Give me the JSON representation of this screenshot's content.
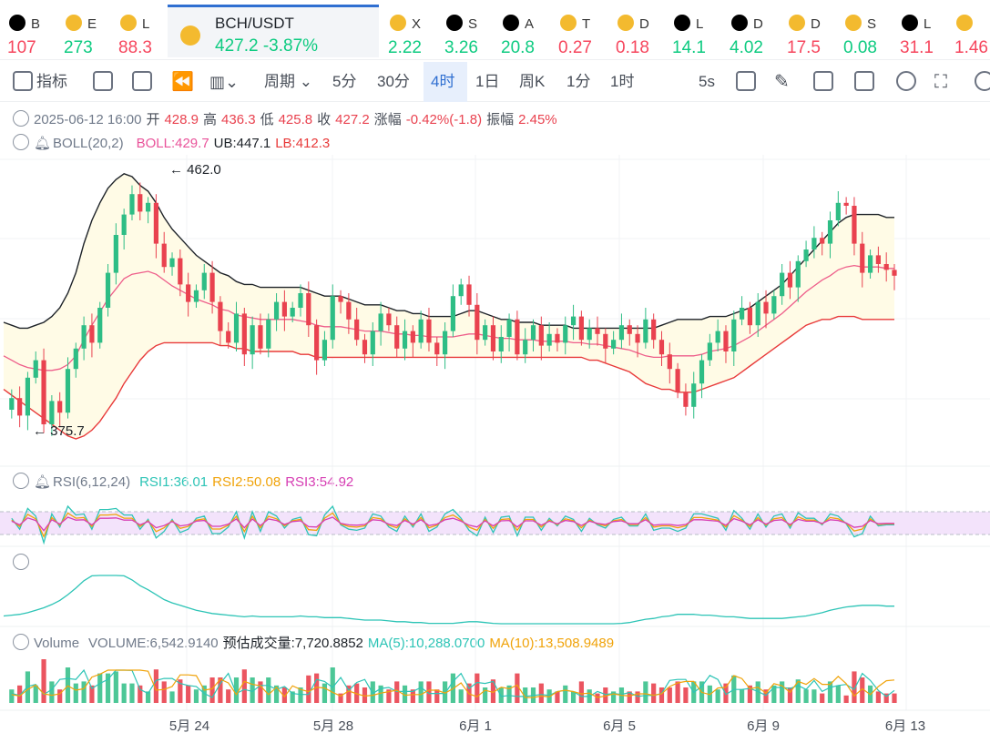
{
  "tickers": [
    {
      "icon": "okx-icon",
      "sym": "B",
      "val": "107",
      "dir": "down"
    },
    {
      "icon": "bnb-icon",
      "sym": "E",
      "val": "273",
      "dir": "up"
    },
    {
      "icon": "bnb-icon",
      "sym": "L",
      "val": "88.3",
      "dir": "down"
    },
    {
      "icon": "bnb-icon",
      "sym": "BCH/USDT",
      "val": "427.2  -3.87%",
      "dir": "up",
      "active": true
    },
    {
      "icon": "bnb-icon",
      "sym": "X",
      "val": "2.22",
      "dir": "up"
    },
    {
      "icon": "okx-icon",
      "sym": "S",
      "val": "3.26",
      "dir": "up"
    },
    {
      "icon": "okx-icon",
      "sym": "A",
      "val": "20.8",
      "dir": "up"
    },
    {
      "icon": "bnb-icon",
      "sym": "T",
      "val": "0.27",
      "dir": "down"
    },
    {
      "icon": "bnb-icon",
      "sym": "D",
      "val": "0.18",
      "dir": "down"
    },
    {
      "icon": "okx-icon",
      "sym": "L",
      "val": "14.1",
      "dir": "up"
    },
    {
      "icon": "okx-icon",
      "sym": "D",
      "val": "4.02",
      "dir": "up"
    },
    {
      "icon": "bnb-icon",
      "sym": "D",
      "val": "17.5",
      "dir": "down"
    },
    {
      "icon": "bnb-icon",
      "sym": "S",
      "val": "0.08",
      "dir": "up"
    },
    {
      "icon": "okx-icon",
      "sym": "L",
      "val": "31.1",
      "dir": "down"
    },
    {
      "icon": "bnb-icon",
      "sym": "",
      "val": "1.46",
      "dir": "down"
    }
  ],
  "toolbar": {
    "indicators": "指标",
    "period": "周期",
    "intervals": [
      "5分",
      "30分",
      "4时",
      "1日",
      "周K",
      "1分",
      "1时"
    ],
    "active_interval": "4时",
    "refresh": "5s"
  },
  "ohlc": {
    "date": "2025-06-12 16:00",
    "open_label": "开",
    "open": "428.9",
    "high_label": "高",
    "high": "436.3",
    "low_label": "低",
    "low": "425.8",
    "close_label": "收",
    "close": "427.2",
    "change_label": "涨幅",
    "change": "-0.42%(-1.8)",
    "amplitude_label": "振幅",
    "amplitude": "2.45%"
  },
  "boll": {
    "name": "BOLL(20,2)",
    "boll": "BOLL:429.7",
    "ub": "UB:447.1",
    "lb": "LB:412.3"
  },
  "rsi": {
    "name": "RSI(6,12,24)",
    "rsi1": "RSI1:36.01",
    "rsi2": "RSI2:50.08",
    "rsi3": "RSI3:54.92"
  },
  "volume": {
    "name": "Volume",
    "value": "VOLUME:6,542.9140",
    "est": "预估成交量:7,720.8852",
    "ma5": "MA(5):10,288.0700",
    "ma10": "MA(10):13,508.9489"
  },
  "colors": {
    "up": "#2ebd85",
    "down": "#e9424f",
    "ub": "#1e2329",
    "mid": "#ee5d8a",
    "lb": "#e83a3a",
    "fill": "#fffbe6"
  },
  "chart_data": {
    "type": "candlestick",
    "price_series": [
      381,
      385,
      379,
      392,
      398,
      376,
      384,
      380,
      395,
      402,
      410,
      404,
      416,
      428,
      441,
      448,
      455,
      449,
      452,
      438,
      430,
      433,
      424,
      418,
      422,
      428,
      418,
      408,
      404,
      414,
      400,
      410,
      402,
      412,
      418,
      413,
      416,
      421,
      410,
      398,
      405,
      420,
      418,
      412,
      405,
      400,
      408,
      414,
      410,
      402,
      408,
      404,
      412,
      404,
      400,
      408,
      420,
      424,
      417,
      405,
      410,
      401,
      406,
      412,
      400,
      405,
      410,
      403,
      407,
      404,
      410,
      413,
      405,
      409,
      407,
      402,
      405,
      410,
      407,
      404,
      412,
      405,
      400,
      395,
      387,
      382,
      390,
      398,
      404,
      408,
      401,
      412,
      416,
      410,
      418,
      414,
      420,
      428,
      423,
      432,
      436,
      440,
      438,
      446,
      452,
      451,
      438,
      428,
      434,
      431,
      429,
      427
    ],
    "boll_ub": [
      411,
      410,
      409,
      409,
      410,
      411,
      413,
      416,
      421,
      428,
      438,
      446,
      452,
      457,
      460,
      462,
      461,
      458,
      456,
      452,
      447,
      443,
      440,
      437,
      434,
      432,
      430,
      428,
      427,
      425,
      424,
      424,
      423,
      423,
      423,
      423,
      423,
      423,
      422,
      421,
      420,
      420,
      420,
      419,
      418,
      417,
      417,
      417,
      416,
      415,
      415,
      414,
      414,
      413,
      413,
      413,
      413,
      414,
      415,
      415,
      414,
      413,
      412,
      412,
      411,
      411,
      411,
      410,
      410,
      410,
      410,
      409,
      409,
      409,
      409,
      409,
      409,
      409,
      409,
      409,
      409,
      409,
      410,
      411,
      412,
      412,
      412,
      412,
      413,
      413,
      413,
      414,
      415,
      416,
      418,
      420,
      422,
      424,
      427,
      430,
      433,
      436,
      439,
      442,
      445,
      447,
      448,
      448,
      448,
      448,
      447,
      447
    ],
    "boll_lb": [
      388,
      386,
      384,
      382,
      380,
      378,
      376,
      374,
      372,
      371,
      372,
      374,
      377,
      381,
      385,
      390,
      394,
      398,
      401,
      403,
      404,
      404,
      404,
      404,
      404,
      404,
      404,
      403,
      403,
      402,
      402,
      401,
      401,
      401,
      401,
      401,
      401,
      400,
      400,
      399,
      399,
      399,
      399,
      399,
      399,
      399,
      399,
      399,
      399,
      399,
      399,
      399,
      399,
      399,
      399,
      399,
      399,
      399,
      399,
      399,
      399,
      399,
      399,
      399,
      399,
      399,
      399,
      399,
      399,
      399,
      399,
      399,
      399,
      398,
      398,
      397,
      396,
      395,
      394,
      392,
      390,
      389,
      388,
      388,
      387,
      387,
      387,
      388,
      389,
      390,
      391,
      392,
      394,
      396,
      398,
      400,
      402,
      404,
      406,
      408,
      410,
      411,
      412,
      412,
      413,
      413,
      413,
      412,
      412,
      412,
      412,
      412
    ],
    "y_axis_labels": [
      "462.0",
      "375.7"
    ],
    "x_labels": [
      "5月 24",
      "5月 28",
      "6月 1",
      "6月 5",
      "6月 9",
      "6月 13"
    ]
  }
}
